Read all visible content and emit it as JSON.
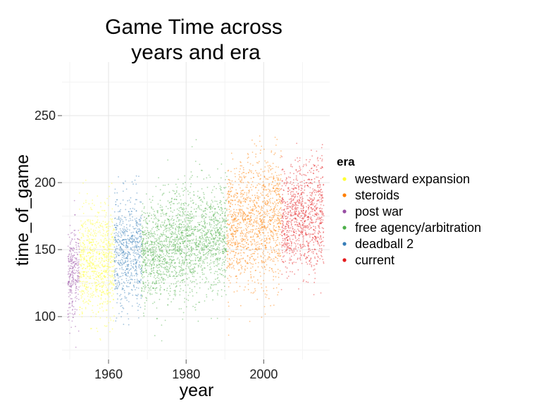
{
  "chart_data": {
    "type": "scatter",
    "title": "Game Time across years and era",
    "title_lines": [
      "Game Time across",
      "years and era"
    ],
    "xlabel": "year",
    "ylabel": "time_of_game",
    "xlim": [
      1948,
      2017
    ],
    "ylim": [
      68,
      290
    ],
    "xticks": [
      1960,
      1980,
      2000
    ],
    "yticks": [
      100,
      150,
      200,
      250
    ],
    "grid": true,
    "legend": {
      "title": "era",
      "placement": "right"
    },
    "series": [
      {
        "name": "westward expansion",
        "color": "#FFFF33",
        "x_range": [
          1953,
          1961
        ],
        "y_mean": [
          138,
          142
        ],
        "y_spread": 20
      },
      {
        "name": "steroids",
        "color": "#FF7F00",
        "x_range": [
          1991,
          2004
        ],
        "y_mean": [
          166,
          172
        ],
        "y_spread": 24
      },
      {
        "name": "post war",
        "color": "#984EA3",
        "x_range": [
          1950,
          1952
        ],
        "y_mean": [
          132,
          134
        ],
        "y_spread": 17
      },
      {
        "name": "free agency/arbitration",
        "color": "#4DAF4A",
        "x_range": [
          1969,
          1990
        ],
        "y_mean": [
          146,
          162
        ],
        "y_spread": 20
      },
      {
        "name": "deadball 2",
        "color": "#377EB8",
        "x_range": [
          1962,
          1968
        ],
        "y_mean": [
          148,
          150
        ],
        "y_spread": 20
      },
      {
        "name": "current",
        "color": "#E41A1C",
        "x_range": [
          2005,
          2015
        ],
        "y_mean": [
          172,
          176
        ],
        "y_spread": 20
      }
    ]
  }
}
